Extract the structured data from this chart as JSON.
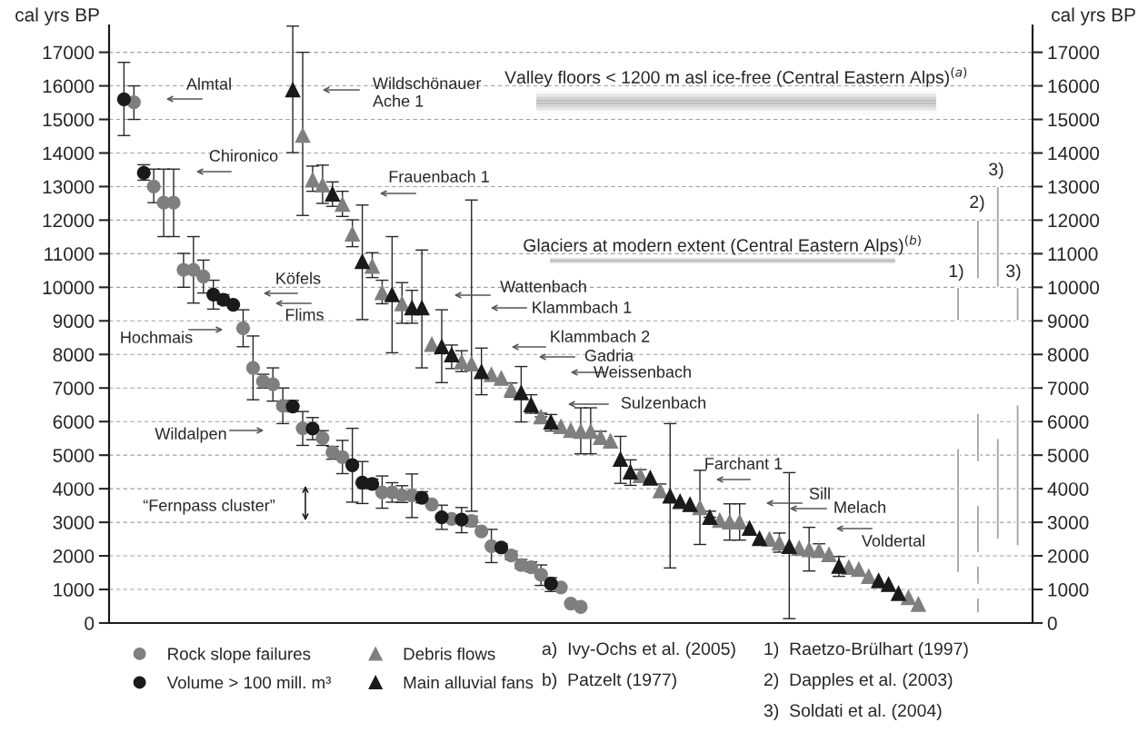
{
  "chart_data": {
    "type": "scatter",
    "categories": [
      null,
      null,
      null,
      null,
      null,
      null,
      null,
      null,
      null,
      null,
      null,
      null,
      null,
      null,
      null,
      null,
      null,
      null,
      null,
      null,
      null,
      null,
      null,
      null,
      null,
      null,
      null,
      null,
      null,
      null,
      null,
      null,
      null,
      null,
      null,
      null,
      null,
      null,
      null,
      null,
      null,
      null,
      null,
      null,
      null,
      null,
      null,
      null,
      null,
      null,
      null,
      null,
      null,
      null,
      null,
      null,
      null,
      null,
      null,
      null,
      null,
      null,
      null,
      null,
      null,
      null,
      null,
      null,
      null,
      null,
      null,
      null,
      null,
      null,
      null,
      null,
      null,
      null,
      null,
      null,
      null,
      null,
      null,
      null,
      null,
      null,
      null,
      null,
      null,
      null,
      null,
      null,
      null
    ],
    "ylabel": "cal yrs BP",
    "y2label": "cal yrs BP",
    "ylim": [
      0,
      17800
    ],
    "yticks": [
      0,
      1000,
      2000,
      3000,
      4000,
      5000,
      6000,
      7000,
      8000,
      9000,
      10000,
      11000,
      12000,
      13000,
      14000,
      15000,
      16000,
      17000
    ],
    "y2lim": [
      0,
      17800
    ],
    "y2ticks": [
      0,
      1000,
      2000,
      3000,
      4000,
      5000,
      6000,
      7000,
      8000,
      9000,
      10000,
      11000,
      12000,
      13000,
      14000,
      15000,
      16000,
      17000
    ],
    "grid": "y",
    "legend": "bottom",
    "series": [
      {
        "name": "Rock slope failures",
        "marker": "circle",
        "color": "#7f7f7f",
        "values": [
          null,
          null,
          15510,
          null,
          13000,
          12520,
          12520,
          10520,
          10520,
          10320,
          null,
          null,
          null,
          8780,
          7600,
          7200,
          7110,
          6470,
          null,
          5800,
          null,
          5510,
          5080,
          4940,
          null,
          null,
          null,
          3890,
          3890,
          3800,
          3800,
          null,
          3530,
          null,
          3100,
          null,
          3040,
          2730,
          2290,
          null,
          2010,
          1730,
          1660,
          1440,
          null,
          1060,
          580,
          480,
          null,
          null,
          null,
          null,
          null,
          null,
          null,
          null,
          null,
          null,
          null,
          null,
          null,
          null,
          null,
          null,
          null,
          null,
          null,
          null,
          null,
          null,
          null,
          null,
          null,
          null,
          null,
          null,
          null,
          null,
          null,
          null,
          null,
          null,
          null,
          null,
          null,
          null,
          null,
          null,
          null,
          null,
          null,
          null,
          null
        ],
        "errors": [
          null,
          null,
          [
            15000,
            16000
          ],
          null,
          [
            12520,
            13520
          ],
          [
            11510,
            13520
          ],
          [
            11510,
            13520
          ],
          [
            10000,
            11010
          ],
          [
            9530,
            11510
          ],
          [
            9830,
            10810
          ],
          null,
          null,
          null,
          [
            8230,
            9330
          ],
          [
            6650,
            8550
          ],
          [
            7000,
            7410
          ],
          [
            6610,
            7600
          ],
          [
            5940,
            7000
          ],
          null,
          [
            5290,
            6300
          ],
          null,
          [
            5290,
            5730
          ],
          [
            4880,
            5260
          ],
          [
            4450,
            5440
          ],
          null,
          null,
          null,
          [
            3420,
            4380
          ],
          [
            3600,
            4180
          ],
          [
            3590,
            4090
          ],
          [
            3140,
            4440
          ],
          null,
          null,
          null,
          null,
          null,
          [
            2880,
            3180
          ],
          null,
          [
            1800,
            2790
          ],
          null,
          [
            1890,
            2140
          ],
          [
            1620,
            1890
          ],
          [
            1530,
            1820
          ],
          [
            1120,
            1730
          ],
          null,
          null,
          null,
          null,
          null,
          null,
          null,
          null,
          null,
          null,
          null,
          null,
          null,
          null,
          null,
          null,
          null,
          null,
          null,
          null,
          null,
          null,
          null,
          null,
          null,
          null,
          null,
          null,
          null,
          null,
          null,
          null,
          null,
          null,
          null,
          null,
          null,
          null,
          null,
          null,
          null,
          null,
          null,
          null,
          null,
          null,
          null,
          null,
          null
        ]
      },
      {
        "name": "Volume > 100 mill. m³",
        "marker": "circle",
        "color": "#1a1a1a",
        "values": [
          null,
          15600,
          null,
          13410,
          null,
          null,
          null,
          null,
          null,
          null,
          9780,
          9630,
          9480,
          null,
          null,
          null,
          null,
          null,
          6450,
          null,
          5790,
          null,
          null,
          null,
          4700,
          4180,
          4140,
          null,
          null,
          null,
          null,
          3730,
          null,
          3150,
          null,
          3080,
          null,
          null,
          null,
          2250,
          null,
          null,
          null,
          null,
          1170,
          null,
          null,
          null,
          null,
          null,
          null,
          null,
          null,
          null,
          null,
          null,
          null,
          null,
          null,
          null,
          null,
          null,
          null,
          null,
          null,
          null,
          null,
          null,
          null,
          null,
          null,
          null,
          null,
          null,
          null,
          null,
          null,
          null,
          null,
          null,
          null,
          null,
          null,
          null,
          null,
          null,
          null,
          null,
          null,
          null,
          null,
          null,
          null
        ],
        "errors": [
          null,
          [
            14520,
            16700
          ],
          null,
          [
            13190,
            13650
          ],
          null,
          null,
          null,
          null,
          null,
          null,
          [
            9350,
            10210
          ],
          [
            9500,
            9780
          ],
          null,
          null,
          null,
          null,
          null,
          null,
          [
            6300,
            6630
          ],
          null,
          [
            5460,
            6120
          ],
          null,
          null,
          null,
          [
            3600,
            5800
          ],
          [
            3560,
            4810
          ],
          [
            4000,
            4290
          ],
          null,
          null,
          null,
          null,
          [
            3580,
            3910
          ],
          null,
          [
            2790,
            3510
          ],
          null,
          [
            2690,
            3440
          ],
          null,
          null,
          null,
          [
            2140,
            2360
          ],
          null,
          null,
          null,
          null,
          [
            940,
            1350
          ],
          null,
          null,
          null,
          null,
          null,
          null,
          null,
          null,
          null,
          null,
          null,
          null,
          null,
          null,
          null,
          null,
          null,
          null,
          null,
          null,
          null,
          null,
          null,
          null,
          null,
          null,
          null,
          null,
          null,
          null,
          null,
          null,
          null,
          null,
          null,
          null,
          null,
          null,
          null,
          null,
          null,
          null,
          null,
          null,
          null,
          null,
          null,
          null
        ]
      },
      {
        "name": "Debris flows",
        "marker": "triangle",
        "color": "#7f7f7f",
        "values": [
          null,
          null,
          null,
          null,
          null,
          null,
          null,
          null,
          null,
          null,
          null,
          null,
          null,
          null,
          null,
          null,
          null,
          null,
          null,
          14530,
          13200,
          13050,
          null,
          12470,
          11590,
          null,
          10630,
          9840,
          null,
          9510,
          null,
          null,
          8300,
          null,
          null,
          7780,
          7720,
          null,
          7400,
          7290,
          6950,
          null,
          null,
          6140,
          null,
          5850,
          5740,
          5710,
          5710,
          5530,
          5420,
          null,
          null,
          4390,
          null,
          3940,
          null,
          null,
          null,
          3440,
          null,
          3060,
          3010,
          3010,
          null,
          null,
          2500,
          2380,
          null,
          2230,
          2190,
          2160,
          2040,
          null,
          1660,
          1600,
          1390,
          null,
          null,
          null,
          760,
          560,
          null,
          null,
          null,
          null,
          null,
          null,
          null,
          null,
          null,
          null,
          null
        ],
        "errors": [
          null,
          null,
          null,
          null,
          null,
          null,
          null,
          null,
          null,
          null,
          null,
          null,
          null,
          null,
          null,
          null,
          null,
          null,
          null,
          [
            12140,
            17000
          ],
          [
            12860,
            13610
          ],
          [
            12500,
            13640
          ],
          null,
          [
            12110,
            12860
          ],
          [
            11210,
            12010
          ],
          null,
          [
            10290,
            11030
          ],
          [
            9510,
            10210
          ],
          null,
          [
            8930,
            10140
          ],
          null,
          null,
          null,
          null,
          null,
          [
            7490,
            8110
          ],
          [
            3330,
            12600
          ],
          null,
          null,
          null,
          [
            6730,
            7150
          ],
          null,
          null,
          [
            6140,
            6250
          ],
          null,
          null,
          null,
          [
            5040,
            6410
          ],
          [
            5040,
            6410
          ],
          [
            5380,
            5710
          ],
          null,
          null,
          null,
          [
            4250,
            4570
          ],
          null,
          [
            3760,
            4140
          ],
          null,
          null,
          null,
          [
            2340,
            4550
          ],
          null,
          null,
          [
            2470,
            3550
          ],
          [
            2470,
            3550
          ],
          null,
          null,
          null,
          [
            2110,
            2680
          ],
          null,
          null,
          [
            1550,
            2850
          ],
          [
            1980,
            2360
          ],
          null,
          null,
          null,
          null,
          null,
          null,
          null,
          null,
          null,
          null,
          null,
          null,
          null,
          null,
          null,
          null,
          null,
          null,
          null,
          null,
          null
        ]
      },
      {
        "name": "Main alluvial fans",
        "marker": "triangle",
        "color": "#1a1a1a",
        "values": [
          null,
          null,
          null,
          null,
          null,
          null,
          null,
          null,
          null,
          null,
          null,
          null,
          null,
          null,
          null,
          null,
          null,
          null,
          15880,
          null,
          null,
          null,
          12780,
          null,
          null,
          10770,
          null,
          null,
          9780,
          null,
          9390,
          9390,
          null,
          8230,
          7990,
          null,
          null,
          7490,
          null,
          null,
          null,
          6860,
          6500,
          null,
          5990,
          null,
          null,
          null,
          null,
          null,
          null,
          4880,
          4500,
          null,
          4320,
          null,
          3780,
          3620,
          3530,
          null,
          3150,
          null,
          null,
          null,
          2820,
          2520,
          null,
          null,
          2280,
          null,
          null,
          null,
          null,
          1690,
          null,
          null,
          null,
          1260,
          1150,
          880,
          null,
          null,
          null,
          null,
          null,
          null,
          null,
          null,
          null,
          null,
          null,
          null,
          null
        ],
        "errors": [
          null,
          null,
          null,
          null,
          null,
          null,
          null,
          null,
          null,
          null,
          null,
          null,
          null,
          null,
          null,
          null,
          null,
          null,
          [
            14010,
            17780
          ],
          null,
          null,
          null,
          [
            12410,
            13140
          ],
          null,
          null,
          [
            9040,
            12450
          ],
          null,
          null,
          [
            8050,
            11510
          ],
          null,
          [
            8930,
            9910
          ],
          [
            7600,
            11110
          ],
          null,
          [
            7160,
            9330
          ],
          [
            7580,
            8280
          ],
          null,
          null,
          [
            6800,
            8190
          ],
          null,
          null,
          null,
          [
            5990,
            7640
          ],
          [
            6250,
            6800
          ],
          null,
          [
            5720,
            6210
          ],
          null,
          null,
          null,
          null,
          null,
          null,
          [
            4160,
            5560
          ],
          [
            4100,
            4860
          ],
          null,
          null,
          null,
          [
            1640,
            5940
          ],
          null,
          null,
          null,
          [
            3150,
            3330
          ],
          null,
          null,
          null,
          null,
          null,
          null,
          null,
          [
            130,
            4480
          ],
          null,
          null,
          null,
          null,
          [
            1390,
            1980
          ],
          null,
          null,
          null,
          null,
          null,
          null,
          null,
          null,
          null,
          null,
          null,
          null,
          null,
          null,
          null,
          null,
          null,
          null,
          null
        ]
      },
      {
        "type": "bar",
        "color": "#a6a6a6",
        "values": [
          null,
          null,
          null,
          null,
          null,
          null,
          null,
          null,
          null,
          null,
          null,
          null,
          null,
          null,
          null,
          null,
          null,
          null,
          null,
          null,
          null,
          null,
          null,
          null,
          null,
          null,
          null,
          null,
          null,
          null,
          null,
          null,
          null,
          null,
          null,
          null,
          null,
          null,
          null,
          null,
          null,
          null,
          null,
          null,
          null,
          null,
          null,
          null,
          null,
          null,
          null,
          null,
          null,
          null,
          null,
          null,
          null,
          null,
          null,
          null,
          null,
          null,
          null,
          null,
          null,
          null,
          null,
          null,
          null,
          null,
          null,
          null,
          null,
          null,
          null,
          null,
          null,
          null,
          null,
          null,
          null,
          null,
          null,
          null,
          null,
          1000,
          null,
          1750,
          null,
          3000,
          null,
          1000,
          null
        ],
        "base": [
          null,
          null,
          null,
          null,
          null,
          null,
          null,
          null,
          null,
          null,
          null,
          null,
          null,
          null,
          null,
          null,
          null,
          null,
          null,
          null,
          null,
          null,
          null,
          null,
          null,
          null,
          null,
          null,
          null,
          null,
          null,
          null,
          null,
          null,
          null,
          null,
          null,
          null,
          null,
          null,
          null,
          null,
          null,
          null,
          null,
          null,
          null,
          null,
          null,
          null,
          null,
          null,
          null,
          null,
          null,
          null,
          null,
          null,
          null,
          null,
          null,
          null,
          null,
          null,
          null,
          null,
          null,
          null,
          null,
          null,
          null,
          null,
          null,
          null,
          null,
          null,
          null,
          null,
          null,
          null,
          null,
          null,
          null,
          null,
          null,
          9000,
          null,
          10250,
          null,
          10000,
          null,
          9000,
          null
        ]
      },
      {
        "type": "bar",
        "color": "#a6a6a6",
        "values": [
          null,
          null,
          null,
          null,
          null,
          null,
          null,
          null,
          null,
          null,
          null,
          null,
          null,
          null,
          null,
          null,
          null,
          null,
          null,
          null,
          null,
          null,
          null,
          null,
          null,
          null,
          null,
          null,
          null,
          null,
          null,
          null,
          null,
          null,
          null,
          null,
          null,
          null,
          null,
          null,
          null,
          null,
          null,
          null,
          null,
          null,
          null,
          null,
          null,
          null,
          null,
          null,
          null,
          null,
          null,
          null,
          null,
          null,
          null,
          null,
          null,
          null,
          null,
          null,
          null,
          null,
          null,
          null,
          null,
          null,
          null,
          null,
          null,
          null,
          null,
          null,
          null,
          null,
          null,
          null,
          null,
          null,
          null,
          null,
          null,
          3700,
          null,
          1450,
          null,
          3000,
          null,
          4200,
          null
        ],
        "base": [
          null,
          null,
          null,
          null,
          null,
          null,
          null,
          null,
          null,
          null,
          null,
          null,
          null,
          null,
          null,
          null,
          null,
          null,
          null,
          null,
          null,
          null,
          null,
          null,
          null,
          null,
          null,
          null,
          null,
          null,
          null,
          null,
          null,
          null,
          null,
          null,
          null,
          null,
          null,
          null,
          null,
          null,
          null,
          null,
          null,
          null,
          null,
          null,
          null,
          null,
          null,
          null,
          null,
          null,
          null,
          null,
          null,
          null,
          null,
          null,
          null,
          null,
          null,
          null,
          null,
          null,
          null,
          null,
          null,
          null,
          null,
          null,
          null,
          null,
          null,
          null,
          null,
          null,
          null,
          null,
          null,
          null,
          null,
          null,
          null,
          1500,
          null,
          4800,
          null,
          2500,
          null,
          2300,
          null
        ]
      },
      {
        "type": "bar",
        "color": "#a6a6a6",
        "values": [
          null,
          null,
          null,
          null,
          null,
          null,
          null,
          null,
          null,
          null,
          null,
          null,
          null,
          null,
          null,
          null,
          null,
          null,
          null,
          null,
          null,
          null,
          null,
          null,
          null,
          null,
          null,
          null,
          null,
          null,
          null,
          null,
          null,
          null,
          null,
          null,
          null,
          null,
          null,
          null,
          null,
          null,
          null,
          null,
          null,
          null,
          null,
          null,
          null,
          null,
          null,
          null,
          null,
          null,
          null,
          null,
          null,
          null,
          null,
          null,
          null,
          null,
          null,
          null,
          null,
          null,
          null,
          null,
          null,
          null,
          null,
          null,
          null,
          null,
          null,
          null,
          null,
          null,
          null,
          null,
          null,
          null,
          null,
          null,
          null,
          null,
          null,
          1400,
          null,
          null,
          null,
          null,
          null
        ],
        "base": [
          null,
          null,
          null,
          null,
          null,
          null,
          null,
          null,
          null,
          null,
          null,
          null,
          null,
          null,
          null,
          null,
          null,
          null,
          null,
          null,
          null,
          null,
          null,
          null,
          null,
          null,
          null,
          null,
          null,
          null,
          null,
          null,
          null,
          null,
          null,
          null,
          null,
          null,
          null,
          null,
          null,
          null,
          null,
          null,
          null,
          null,
          null,
          null,
          null,
          null,
          null,
          null,
          null,
          null,
          null,
          null,
          null,
          null,
          null,
          null,
          null,
          null,
          null,
          null,
          null,
          null,
          null,
          null,
          null,
          null,
          null,
          null,
          null,
          null,
          null,
          null,
          null,
          null,
          null,
          null,
          null,
          null,
          null,
          null,
          null,
          null,
          null,
          2100,
          null,
          null,
          null,
          null,
          null
        ]
      },
      {
        "type": "bar",
        "color": "#a6a6a6",
        "values": [
          null,
          null,
          null,
          null,
          null,
          null,
          null,
          null,
          null,
          null,
          null,
          null,
          null,
          null,
          null,
          null,
          null,
          null,
          null,
          null,
          null,
          null,
          null,
          null,
          null,
          null,
          null,
          null,
          null,
          null,
          null,
          null,
          null,
          null,
          null,
          null,
          null,
          null,
          null,
          null,
          null,
          null,
          null,
          null,
          null,
          null,
          null,
          null,
          null,
          null,
          null,
          null,
          null,
          null,
          null,
          null,
          null,
          null,
          null,
          null,
          null,
          null,
          null,
          null,
          null,
          null,
          null,
          null,
          null,
          null,
          null,
          null,
          null,
          null,
          null,
          null,
          null,
          null,
          null,
          null,
          null,
          null,
          null,
          null,
          null,
          null,
          null,
          550,
          null,
          null,
          null,
          null,
          null
        ],
        "base": [
          null,
          null,
          null,
          null,
          null,
          null,
          null,
          null,
          null,
          null,
          null,
          null,
          null,
          null,
          null,
          null,
          null,
          null,
          null,
          null,
          null,
          null,
          null,
          null,
          null,
          null,
          null,
          null,
          null,
          null,
          null,
          null,
          null,
          null,
          null,
          null,
          null,
          null,
          null,
          null,
          null,
          null,
          null,
          null,
          null,
          null,
          null,
          null,
          null,
          null,
          null,
          null,
          null,
          null,
          null,
          null,
          null,
          null,
          null,
          null,
          null,
          null,
          null,
          null,
          null,
          null,
          null,
          null,
          null,
          null,
          null,
          null,
          null,
          null,
          null,
          null,
          null,
          null,
          null,
          null,
          null,
          null,
          null,
          null,
          null,
          null,
          null,
          1150,
          null,
          null,
          null,
          null,
          null
        ]
      },
      {
        "type": "bar",
        "color": "#a6a6a6",
        "values": [
          null,
          null,
          null,
          null,
          null,
          null,
          null,
          null,
          null,
          null,
          null,
          null,
          null,
          null,
          null,
          null,
          null,
          null,
          null,
          null,
          null,
          null,
          null,
          null,
          null,
          null,
          null,
          null,
          null,
          null,
          null,
          null,
          null,
          null,
          null,
          null,
          null,
          null,
          null,
          null,
          null,
          null,
          null,
          null,
          null,
          null,
          null,
          null,
          null,
          null,
          null,
          null,
          null,
          null,
          null,
          null,
          null,
          null,
          null,
          null,
          null,
          null,
          null,
          null,
          null,
          null,
          null,
          null,
          null,
          null,
          null,
          null,
          null,
          null,
          null,
          null,
          null,
          null,
          null,
          null,
          null,
          null,
          null,
          null,
          null,
          null,
          null,
          450,
          null,
          null,
          null,
          null,
          null
        ],
        "base": [
          null,
          null,
          null,
          null,
          null,
          null,
          null,
          null,
          null,
          null,
          null,
          null,
          null,
          null,
          null,
          null,
          null,
          null,
          null,
          null,
          null,
          null,
          null,
          null,
          null,
          null,
          null,
          null,
          null,
          null,
          null,
          null,
          null,
          null,
          null,
          null,
          null,
          null,
          null,
          null,
          null,
          null,
          null,
          null,
          null,
          null,
          null,
          null,
          null,
          null,
          null,
          null,
          null,
          null,
          null,
          null,
          null,
          null,
          null,
          null,
          null,
          null,
          null,
          null,
          null,
          null,
          null,
          null,
          null,
          null,
          null,
          null,
          null,
          null,
          null,
          null,
          null,
          null,
          null,
          null,
          null,
          null,
          null,
          null,
          null,
          null,
          null,
          300,
          null,
          null,
          null,
          null,
          null
        ]
      }
    ],
    "annotations": [
      "Almtal",
      "Wildschönauer\nAche 1",
      "Chironico",
      "Frauenbach 1",
      "Köfels",
      "Flims",
      "Hochmais",
      "Wattenbach",
      "Klammbach 1",
      "Klammbach 2",
      "Gadria",
      "Weissenbach",
      "Sulzenbach",
      "Wildalpen",
      "“Fernpass cluster”",
      "Farchant 1",
      "Sill",
      "Melach",
      "Voldertal",
      "Valley floors < 1200 m asl ice-free (Central Eastern Alps)$^{(a)}$",
      "Glaciers at modern extent (Central Eastern Alps)$^{(b)}$",
      "1)",
      "2)",
      "3)",
      "3)",
      "a)  Ivy-Ochs et al. (2005)",
      "b)  Patzelt (1977)",
      "1)  Raetzo-Brülhart (1997)",
      "2)  Dapples et al. (2003)",
      "3)  Soldati et al. (2004)"
    ]
  }
}
